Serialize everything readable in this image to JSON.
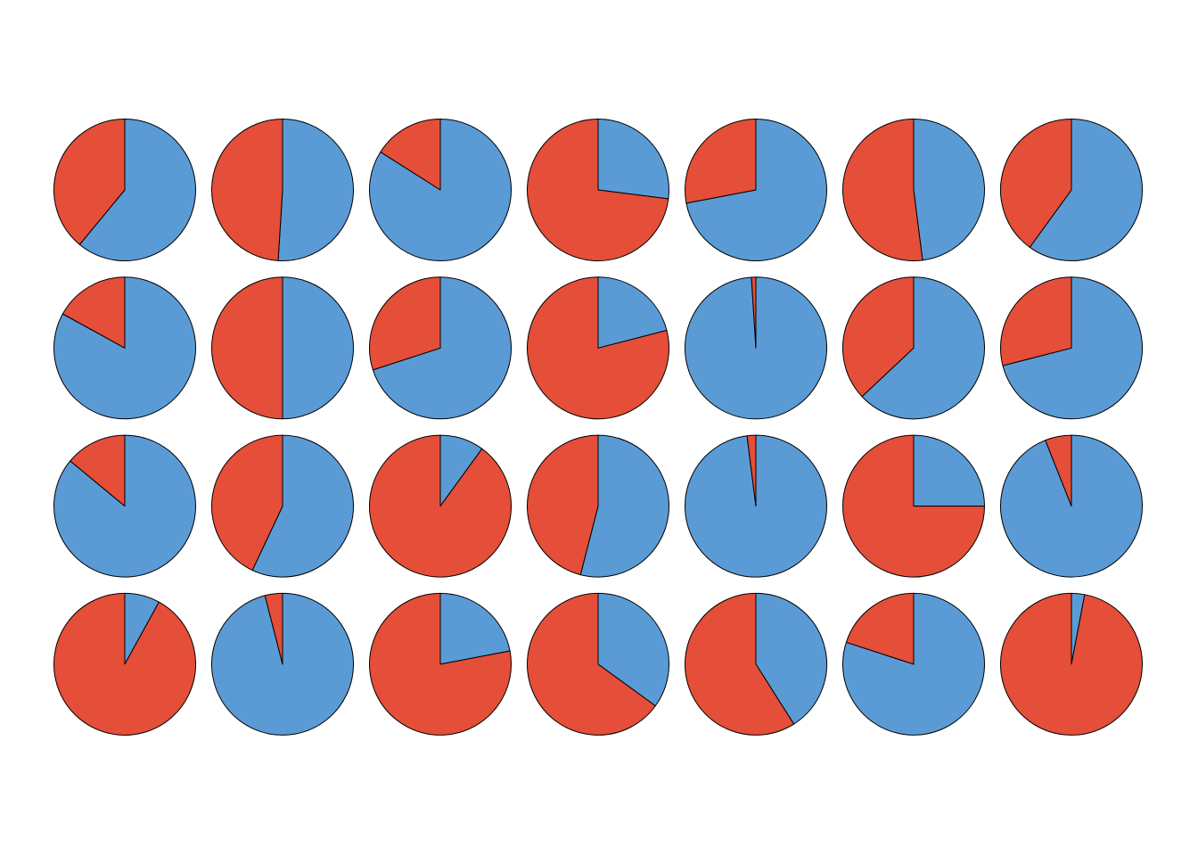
{
  "chart_data": [
    {
      "type": "pie",
      "values": [
        61,
        39
      ],
      "colors": [
        "#5b9bd5",
        "#e54e38"
      ]
    },
    {
      "type": "pie",
      "values": [
        51,
        49
      ],
      "colors": [
        "#5b9bd5",
        "#e54e38"
      ]
    },
    {
      "type": "pie",
      "values": [
        84,
        16
      ],
      "colors": [
        "#5b9bd5",
        "#e54e38"
      ]
    },
    {
      "type": "pie",
      "values": [
        27,
        73
      ],
      "colors": [
        "#5b9bd5",
        "#e54e38"
      ]
    },
    {
      "type": "pie",
      "values": [
        72,
        28
      ],
      "colors": [
        "#5b9bd5",
        "#e54e38"
      ]
    },
    {
      "type": "pie",
      "values": [
        48,
        52
      ],
      "colors": [
        "#5b9bd5",
        "#e54e38"
      ]
    },
    {
      "type": "pie",
      "values": [
        60,
        40
      ],
      "colors": [
        "#5b9bd5",
        "#e54e38"
      ]
    },
    {
      "type": "pie",
      "values": [
        83,
        17
      ],
      "colors": [
        "#5b9bd5",
        "#e54e38"
      ]
    },
    {
      "type": "pie",
      "values": [
        50,
        50
      ],
      "colors": [
        "#5b9bd5",
        "#e54e38"
      ]
    },
    {
      "type": "pie",
      "values": [
        70,
        30
      ],
      "colors": [
        "#5b9bd5",
        "#e54e38"
      ]
    },
    {
      "type": "pie",
      "values": [
        21,
        79
      ],
      "colors": [
        "#5b9bd5",
        "#e54e38"
      ]
    },
    {
      "type": "pie",
      "values": [
        99,
        1
      ],
      "colors": [
        "#5b9bd5",
        "#e54e38"
      ]
    },
    {
      "type": "pie",
      "values": [
        63,
        37
      ],
      "colors": [
        "#5b9bd5",
        "#e54e38"
      ]
    },
    {
      "type": "pie",
      "values": [
        71,
        29
      ],
      "colors": [
        "#5b9bd5",
        "#e54e38"
      ]
    },
    {
      "type": "pie",
      "values": [
        86,
        14
      ],
      "colors": [
        "#5b9bd5",
        "#e54e38"
      ]
    },
    {
      "type": "pie",
      "values": [
        57,
        43
      ],
      "colors": [
        "#5b9bd5",
        "#e54e38"
      ]
    },
    {
      "type": "pie",
      "values": [
        10,
        90
      ],
      "colors": [
        "#5b9bd5",
        "#e54e38"
      ]
    },
    {
      "type": "pie",
      "values": [
        54,
        46
      ],
      "colors": [
        "#5b9bd5",
        "#e54e38"
      ]
    },
    {
      "type": "pie",
      "values": [
        98,
        2
      ],
      "colors": [
        "#5b9bd5",
        "#e54e38"
      ]
    },
    {
      "type": "pie",
      "values": [
        25,
        75
      ],
      "colors": [
        "#5b9bd5",
        "#e54e38"
      ]
    },
    {
      "type": "pie",
      "values": [
        94,
        6
      ],
      "colors": [
        "#5b9bd5",
        "#e54e38"
      ]
    },
    {
      "type": "pie",
      "values": [
        8,
        92
      ],
      "colors": [
        "#5b9bd5",
        "#e54e38"
      ]
    },
    {
      "type": "pie",
      "values": [
        96,
        4
      ],
      "colors": [
        "#5b9bd5",
        "#e54e38"
      ]
    },
    {
      "type": "pie",
      "values": [
        22,
        78
      ],
      "colors": [
        "#5b9bd5",
        "#e54e38"
      ]
    },
    {
      "type": "pie",
      "values": [
        35,
        65
      ],
      "colors": [
        "#5b9bd5",
        "#e54e38"
      ]
    },
    {
      "type": "pie",
      "values": [
        41,
        59
      ],
      "colors": [
        "#5b9bd5",
        "#e54e38"
      ]
    },
    {
      "type": "pie",
      "values": [
        80,
        20
      ],
      "colors": [
        "#5b9bd5",
        "#e54e38"
      ]
    },
    {
      "type": "pie",
      "values": [
        3,
        97
      ],
      "colors": [
        "#5b9bd5",
        "#e54e38"
      ]
    }
  ]
}
